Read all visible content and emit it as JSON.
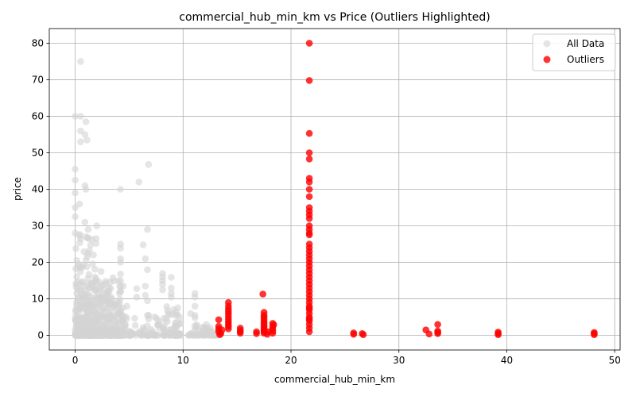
{
  "chart_data": {
    "type": "scatter",
    "title": "commercial_hub_min_km vs Price (Outliers Highlighted)",
    "xlabel": "commercial_hub_min_km",
    "ylabel": "price",
    "xlim": [
      -2.4,
      50.5
    ],
    "ylim": [
      -4,
      84
    ],
    "xticks": [
      0,
      10,
      20,
      30,
      40,
      50
    ],
    "yticks": [
      0,
      10,
      20,
      30,
      40,
      50,
      60,
      70,
      80
    ],
    "grid": true,
    "legend_position": "top-right",
    "series": [
      {
        "name": "All Data",
        "color": "#d3d3d3",
        "clusters": [
          {
            "x": [
              0,
              4.5
            ],
            "y": [
              0,
              15
            ],
            "n": 420
          },
          {
            "x": [
              0,
              2
            ],
            "y": [
              0,
              30
            ],
            "n": 160
          },
          {
            "x": [
              4.5,
              8
            ],
            "y": [
              0,
              6
            ],
            "n": 60
          },
          {
            "x": [
              8,
              9.8
            ],
            "y": [
              0,
              8
            ],
            "n": 60
          },
          {
            "x": [
              10.5,
              12.5
            ],
            "y": [
              0,
              4
            ],
            "n": 40
          },
          {
            "x": [
              12.2,
              13.2
            ],
            "y": [
              0,
              1.5
            ],
            "n": 10
          }
        ],
        "points": [
          [
            0.0,
            60.0
          ],
          [
            0.5,
            60.0
          ],
          [
            0.5,
            75.0
          ],
          [
            0.5,
            56.0
          ],
          [
            0.9,
            55.0
          ],
          [
            0.5,
            53.0
          ],
          [
            1.0,
            58.5
          ],
          [
            1.1,
            53.5
          ],
          [
            0.0,
            45.5
          ],
          [
            0.0,
            42.5
          ],
          [
            0.9,
            41.0
          ],
          [
            1.0,
            40.0
          ],
          [
            0.0,
            39.0
          ],
          [
            0.4,
            36.0
          ],
          [
            0.0,
            35.0
          ],
          [
            0.0,
            32.5
          ],
          [
            0.0,
            28.0
          ],
          [
            0.9,
            31.0
          ],
          [
            1.2,
            29.0
          ],
          [
            2.0,
            30.0
          ],
          [
            1.0,
            27.0
          ],
          [
            1.2,
            26.5
          ],
          [
            1.7,
            22.0
          ],
          [
            1.0,
            20.5
          ],
          [
            4.2,
            40.0
          ],
          [
            5.9,
            42.0
          ],
          [
            6.8,
            46.8
          ],
          [
            4.2,
            25.0
          ],
          [
            4.2,
            23.9
          ],
          [
            6.3,
            24.8
          ],
          [
            4.2,
            21.0
          ],
          [
            4.2,
            20.0
          ],
          [
            6.5,
            21.0
          ],
          [
            2.4,
            17.5
          ],
          [
            3.5,
            15.8
          ],
          [
            4.2,
            16.8
          ],
          [
            4.2,
            15.0
          ],
          [
            6.7,
            18.0
          ],
          [
            6.7,
            29.0
          ],
          [
            4.2,
            13.5
          ],
          [
            5.7,
            12.8
          ],
          [
            6.5,
            13.5
          ],
          [
            4.2,
            12.0
          ],
          [
            6.5,
            11.0
          ],
          [
            8.1,
            17.0
          ],
          [
            8.1,
            16.0
          ],
          [
            8.1,
            15.0
          ],
          [
            8.1,
            14.0
          ],
          [
            8.9,
            15.9
          ],
          [
            8.9,
            13.0
          ],
          [
            8.1,
            12.5
          ],
          [
            8.9,
            11.5
          ],
          [
            8.9,
            10.5
          ],
          [
            6.7,
            9.5
          ],
          [
            5.7,
            10.5
          ],
          [
            9.3,
            5.5
          ],
          [
            11.1,
            11.5
          ],
          [
            11.1,
            10.5
          ],
          [
            11.1,
            8.0
          ],
          [
            10.7,
            6.0
          ],
          [
            11.1,
            5.5
          ],
          [
            11.1,
            4.8
          ],
          [
            6.8,
            5.5
          ],
          [
            6.8,
            4.5
          ],
          [
            7.2,
            1.0
          ],
          [
            12.5,
            1.2
          ],
          [
            12.3,
            0.6
          ],
          [
            12.8,
            0.9
          ],
          [
            13.0,
            0.3
          ],
          [
            3.2,
            9.0
          ],
          [
            2.6,
            10.2
          ],
          [
            4.8,
            8.0
          ]
        ]
      },
      {
        "name": "Outliers",
        "color": "#ff0000",
        "points": [
          [
            13.3,
            4.3
          ],
          [
            13.3,
            2.5
          ],
          [
            13.3,
            1.8
          ],
          [
            13.3,
            1.0
          ],
          [
            13.5,
            0.5
          ],
          [
            13.6,
            1.5
          ],
          [
            13.4,
            0.2
          ],
          [
            14.2,
            9.0
          ],
          [
            14.2,
            8.0
          ],
          [
            14.2,
            7.2
          ],
          [
            14.2,
            6.5
          ],
          [
            14.2,
            5.8
          ],
          [
            14.2,
            5.0
          ],
          [
            14.2,
            4.3
          ],
          [
            14.2,
            3.6
          ],
          [
            14.2,
            3.0
          ],
          [
            14.2,
            2.4
          ],
          [
            14.2,
            1.8
          ],
          [
            15.3,
            2.0
          ],
          [
            15.3,
            1.4
          ],
          [
            15.3,
            1.0
          ],
          [
            15.3,
            0.6
          ],
          [
            16.8,
            1.0
          ],
          [
            16.8,
            0.5
          ],
          [
            17.4,
            11.3
          ],
          [
            17.5,
            6.3
          ],
          [
            17.5,
            5.5
          ],
          [
            17.5,
            5.0
          ],
          [
            17.5,
            4.4
          ],
          [
            17.5,
            3.8
          ],
          [
            17.5,
            3.3
          ],
          [
            17.5,
            2.8
          ],
          [
            17.5,
            2.3
          ],
          [
            17.5,
            1.8
          ],
          [
            17.5,
            1.4
          ],
          [
            17.5,
            1.0
          ],
          [
            17.5,
            0.6
          ],
          [
            17.8,
            0.3
          ],
          [
            17.9,
            1.0
          ],
          [
            18.3,
            3.3
          ],
          [
            18.3,
            2.5
          ],
          [
            18.3,
            1.8
          ],
          [
            18.3,
            1.2
          ],
          [
            18.3,
            0.6
          ],
          [
            18.4,
            2.9
          ],
          [
            21.7,
            80.0
          ],
          [
            21.7,
            69.8
          ],
          [
            21.7,
            55.3
          ],
          [
            21.7,
            50.0
          ],
          [
            21.7,
            48.3
          ],
          [
            21.7,
            43.0
          ],
          [
            21.7,
            42.0
          ],
          [
            21.7,
            40.0
          ],
          [
            21.7,
            38.0
          ],
          [
            21.7,
            35.0
          ],
          [
            21.7,
            34.0
          ],
          [
            21.7,
            33.0
          ],
          [
            21.7,
            32.0
          ],
          [
            21.7,
            30.0
          ],
          [
            21.7,
            29.0
          ],
          [
            21.7,
            28.0
          ],
          [
            21.7,
            27.5
          ],
          [
            21.7,
            25.0
          ],
          [
            21.7,
            24.0
          ],
          [
            21.7,
            23.0
          ],
          [
            21.7,
            22.0
          ],
          [
            21.7,
            21.0
          ],
          [
            21.7,
            20.0
          ],
          [
            21.7,
            19.0
          ],
          [
            21.7,
            18.0
          ],
          [
            21.7,
            17.0
          ],
          [
            21.7,
            16.0
          ],
          [
            21.7,
            15.0
          ],
          [
            21.7,
            14.0
          ],
          [
            21.7,
            13.0
          ],
          [
            21.7,
            12.0
          ],
          [
            21.7,
            11.0
          ],
          [
            21.7,
            10.0
          ],
          [
            21.7,
            9.0
          ],
          [
            21.7,
            8.0
          ],
          [
            21.7,
            7.5
          ],
          [
            21.7,
            7.0
          ],
          [
            21.7,
            6.0
          ],
          [
            21.7,
            5.0
          ],
          [
            21.7,
            4.5
          ],
          [
            21.7,
            4.0
          ],
          [
            21.7,
            3.0
          ],
          [
            21.7,
            2.0
          ],
          [
            21.7,
            1.0
          ],
          [
            25.8,
            0.7
          ],
          [
            25.8,
            0.3
          ],
          [
            26.6,
            0.5
          ],
          [
            26.7,
            0.2
          ],
          [
            32.5,
            1.5
          ],
          [
            32.8,
            0.4
          ],
          [
            33.6,
            3.0
          ],
          [
            33.6,
            1.2
          ],
          [
            33.6,
            0.8
          ],
          [
            33.6,
            0.5
          ],
          [
            39.2,
            0.9
          ],
          [
            39.2,
            0.5
          ],
          [
            39.2,
            0.2
          ],
          [
            48.1,
            0.8
          ],
          [
            48.1,
            0.5
          ],
          [
            48.1,
            0.2
          ]
        ]
      }
    ]
  }
}
